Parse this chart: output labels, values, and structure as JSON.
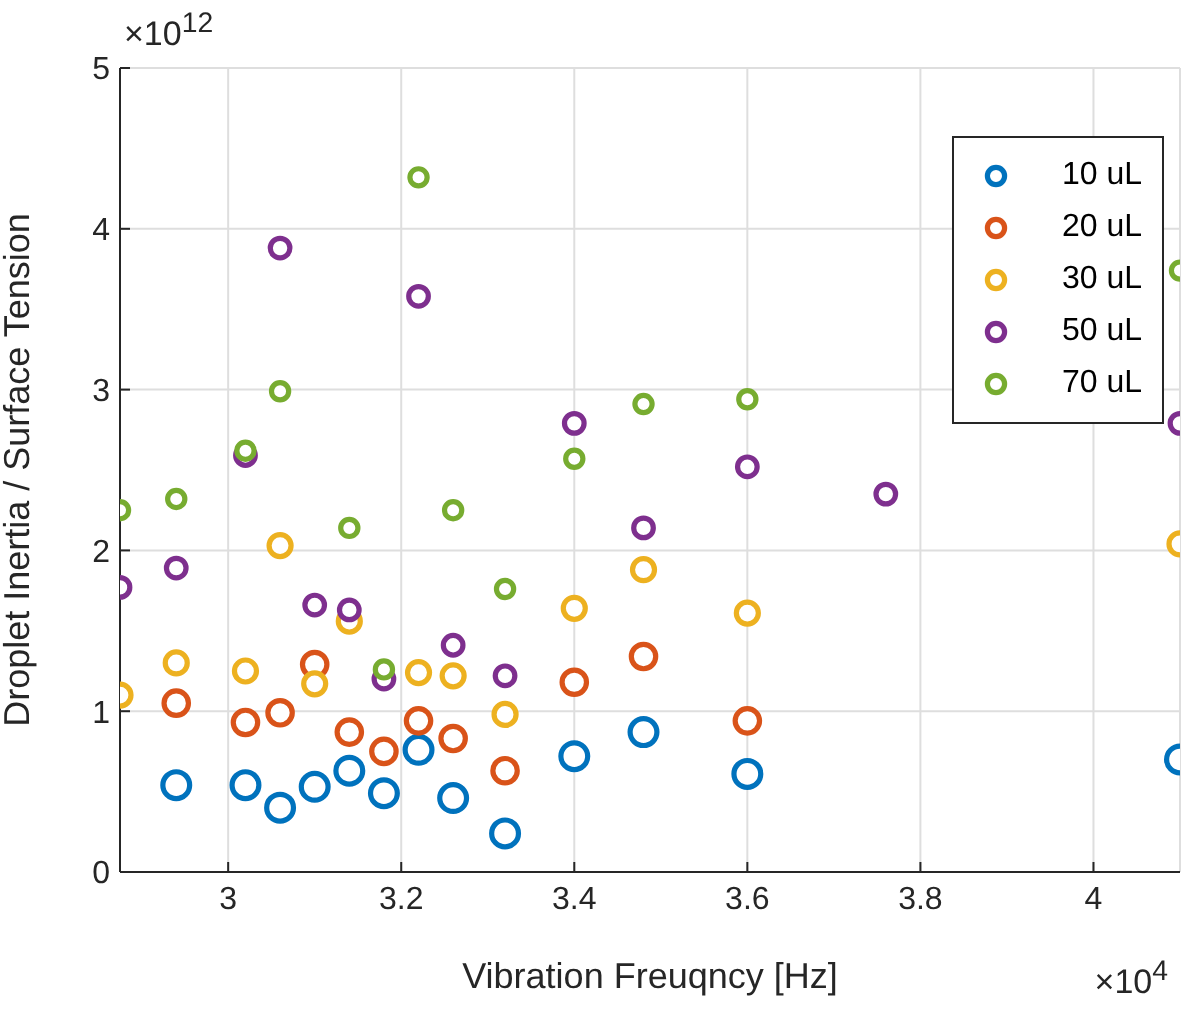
{
  "chart_data": {
    "type": "scatter",
    "xlabel": "Vibration Freuqncy [Hz]",
    "ylabel": "Droplet Inertia / Surface Tension",
    "annotations": [
      "×10$^{12}$",
      "×10$^{4}$"
    ],
    "xlim": [
      2.875,
      4.1
    ],
    "xticks": [
      3,
      3.2,
      3.4,
      3.6,
      3.8,
      4
    ],
    "ylim": [
      0,
      5
    ],
    "yticks": [
      0,
      1,
      2,
      3,
      4,
      5
    ],
    "grid": true,
    "legend": "top right",
    "marker": "circle",
    "series": [
      {
        "name": "10 uL",
        "color": "#0072bd",
        "x": [
          2.94,
          3.02,
          3.06,
          3.1,
          3.14,
          3.18,
          3.22,
          3.26,
          3.32,
          3.4,
          3.48,
          3.6,
          4.1
        ],
        "values": [
          0.54,
          0.54,
          0.4,
          0.53,
          0.63,
          0.49,
          0.76,
          0.46,
          0.24,
          0.72,
          0.87,
          0.61,
          0.7
        ]
      },
      {
        "name": "20 uL",
        "color": "#d95319",
        "x": [
          2.94,
          3.02,
          3.06,
          3.1,
          3.14,
          3.18,
          3.22,
          3.26,
          3.32,
          3.4,
          3.48,
          3.6
        ],
        "values": [
          1.05,
          0.93,
          0.99,
          1.29,
          0.87,
          0.75,
          0.94,
          0.83,
          0.63,
          1.18,
          1.34,
          0.94
        ]
      },
      {
        "name": "30 uL",
        "color": "#edb120",
        "x": [
          2.875,
          2.94,
          3.02,
          3.06,
          3.1,
          3.14,
          3.22,
          3.26,
          3.32,
          3.4,
          3.48,
          3.6,
          4.1
        ],
        "values": [
          1.1,
          1.3,
          1.25,
          2.03,
          1.17,
          1.56,
          1.24,
          1.22,
          0.98,
          1.64,
          1.88,
          1.61,
          2.04
        ]
      },
      {
        "name": "50 uL",
        "color": "#7e2f8e",
        "x": [
          2.875,
          2.94,
          3.02,
          3.06,
          3.1,
          3.14,
          3.18,
          3.22,
          3.26,
          3.32,
          3.4,
          3.48,
          3.6,
          3.76,
          4.1
        ],
        "values": [
          1.77,
          1.89,
          2.59,
          3.88,
          1.66,
          1.63,
          1.2,
          3.58,
          1.41,
          1.22,
          2.79,
          2.14,
          2.52,
          2.35,
          2.79
        ]
      },
      {
        "name": "70 uL",
        "color": "#77ac30",
        "x": [
          2.875,
          2.94,
          3.02,
          3.06,
          3.14,
          3.18,
          3.22,
          3.26,
          3.32,
          3.4,
          3.48,
          3.6,
          4.1
        ],
        "values": [
          2.25,
          2.32,
          2.62,
          2.99,
          2.14,
          1.26,
          4.32,
          2.25,
          1.76,
          2.57,
          2.91,
          2.94,
          3.74
        ]
      }
    ]
  }
}
